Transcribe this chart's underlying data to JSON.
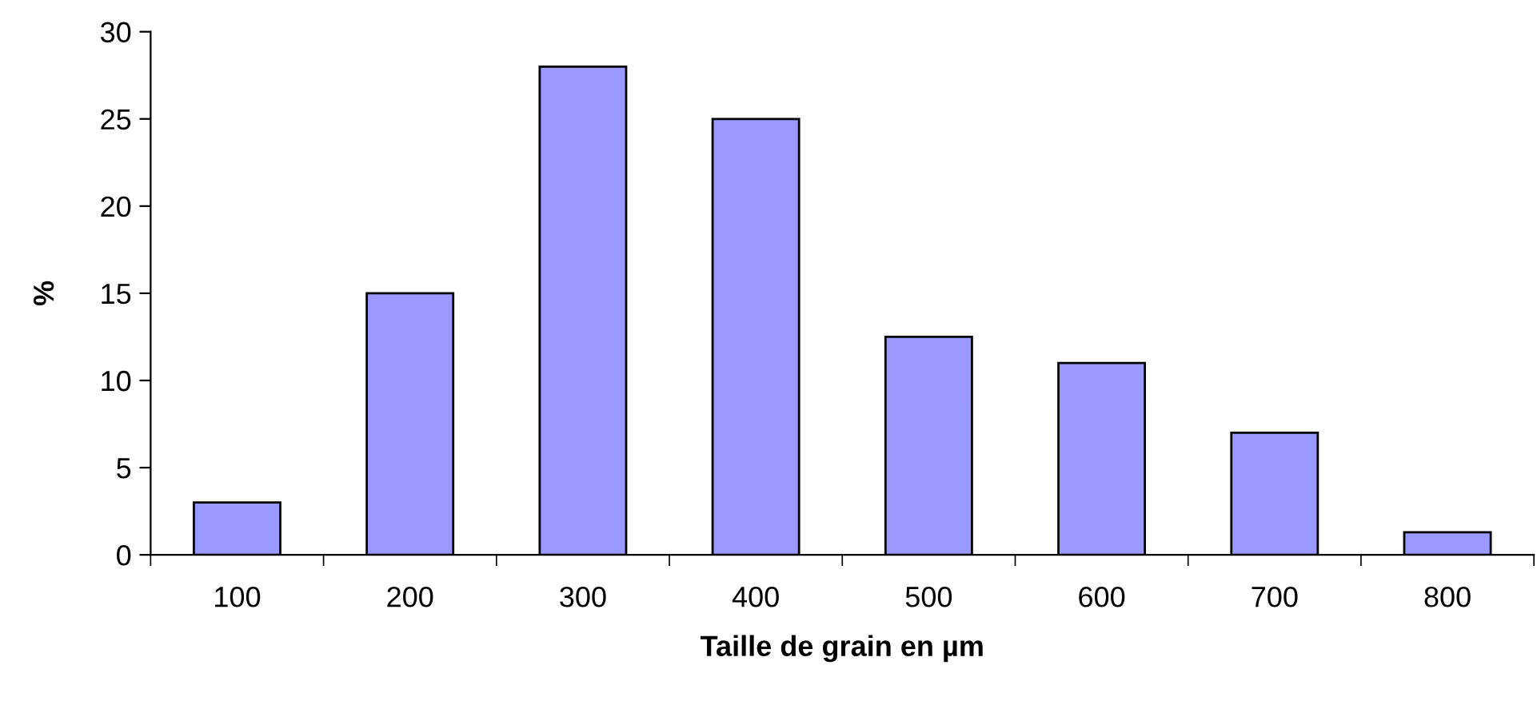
{
  "chart_data": {
    "type": "bar",
    "xlabel": "Taille de grain en µm",
    "ylabel": "%",
    "categories": [
      "100",
      "200",
      "300",
      "400",
      "500",
      "600",
      "700",
      "800"
    ],
    "values": [
      3,
      15,
      28,
      25,
      12.5,
      11,
      7,
      1.3
    ],
    "color": "#9999ff",
    "ylim": [
      0,
      30
    ],
    "yticks": [
      0,
      5,
      10,
      15,
      20,
      25,
      30
    ],
    "grid": false,
    "legend": false
  }
}
